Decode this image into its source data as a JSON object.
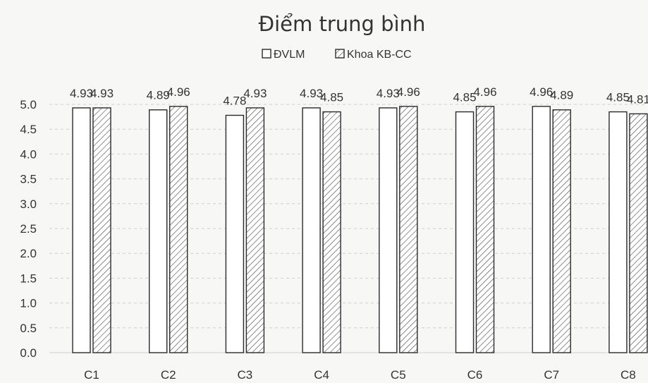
{
  "chart_data": {
    "type": "bar",
    "title": "Điểm trung bình",
    "xlabel": "",
    "ylabel": "",
    "categories": [
      "C1",
      "C2",
      "C3",
      "C4",
      "C5",
      "C6",
      "C7",
      "C8"
    ],
    "series": [
      {
        "name": "ĐVLM",
        "values": [
          4.93,
          4.89,
          4.78,
          4.93,
          4.93,
          4.85,
          4.96,
          4.85
        ],
        "labels": [
          "4.93",
          "4.89",
          "4.78",
          "4.93",
          "4.93",
          "4.85",
          "4.96",
          "4.85"
        ],
        "pattern": "none",
        "fill": "#ffffff"
      },
      {
        "name": "Khoa KB-CC",
        "values": [
          4.93,
          4.96,
          4.93,
          4.85,
          4.96,
          4.96,
          4.89,
          4.81
        ],
        "labels": [
          "4.93",
          "4.96",
          "4.93",
          "4.85",
          "4.96",
          "4.96",
          "4.89",
          "4.81"
        ],
        "pattern": "diagonal-hatch",
        "fill": "#ffffff"
      }
    ],
    "yticks": [
      "0.0",
      "0.5",
      "1.0",
      "1.5",
      "2.0",
      "2.5",
      "3.0",
      "3.5",
      "4.0",
      "4.5",
      "5.0"
    ],
    "ylim": [
      0,
      5
    ],
    "grid": true,
    "legend_position": "top-center",
    "colors": {
      "stroke": "#2b2b2b",
      "grid": "#cfcfcf",
      "text": "#333333",
      "background": "#f7f7f5"
    }
  }
}
